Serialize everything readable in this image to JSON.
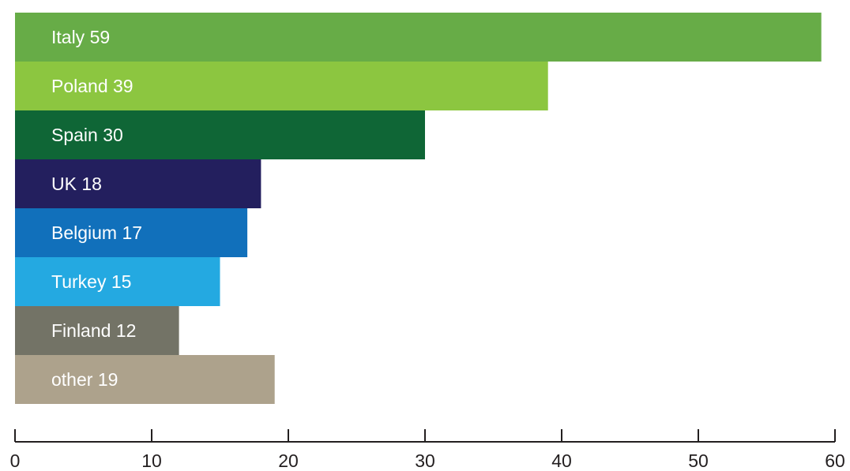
{
  "chart_data": {
    "type": "bar",
    "orientation": "horizontal",
    "categories": [
      "Italy",
      "Poland",
      "Spain",
      "UK",
      "Belgium",
      "Turkey",
      "Finland",
      "other"
    ],
    "values": [
      59,
      39,
      30,
      18,
      17,
      15,
      12,
      19
    ],
    "labels": [
      "Italy 59",
      "Poland 39",
      "Spain 30",
      "UK 18",
      "Belgium 17",
      "Turkey 15",
      "Finland 12",
      "other 19"
    ],
    "colors": [
      "#67ac47",
      "#8cc640",
      "#0f6636",
      "#231f5e",
      "#1170bb",
      "#24a9e1",
      "#737366",
      "#ada28c"
    ],
    "xlim": [
      0,
      60
    ],
    "xticks": [
      0,
      10,
      20,
      30,
      40,
      50,
      60
    ],
    "title": "",
    "xlabel": "",
    "ylabel": "",
    "grid": false,
    "legend": "none"
  }
}
